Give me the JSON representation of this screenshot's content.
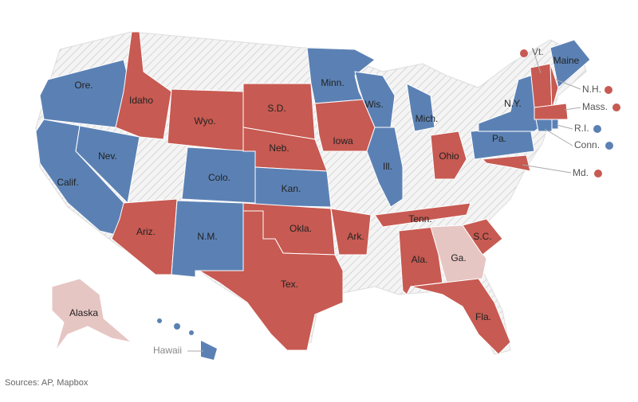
{
  "map": {
    "regions": [
      {
        "label": "Ore.",
        "color": "#5b81b4"
      },
      {
        "label": "Calif.",
        "color": "#5b81b4"
      },
      {
        "label": "Nev.",
        "color": "#5b81b4"
      },
      {
        "label": "Idaho",
        "color": "#c75a52"
      },
      {
        "label": "Wyo.",
        "color": "#c75a52"
      },
      {
        "label": "Ariz.",
        "color": "#c75a52"
      },
      {
        "label": "Colo.",
        "color": "#5b81b4"
      },
      {
        "label": "N.M.",
        "color": "#5b81b4"
      },
      {
        "label": "S.D.",
        "color": "#c75a52"
      },
      {
        "label": "Neb.",
        "color": "#c75a52"
      },
      {
        "label": "Kan.",
        "color": "#5b81b4"
      },
      {
        "label": "Okla.",
        "color": "#c75a52"
      },
      {
        "label": "Tex.",
        "color": "#c75a52"
      },
      {
        "label": "Minn.",
        "color": "#5b81b4"
      },
      {
        "label": "Iowa",
        "color": "#c75a52"
      },
      {
        "label": "Wis.",
        "color": "#5b81b4"
      },
      {
        "label": "Ill.",
        "color": "#5b81b4"
      },
      {
        "label": "Mich.",
        "color": "#5b81b4"
      },
      {
        "label": "Ohio",
        "color": "#c75a52"
      },
      {
        "label": "Ark.",
        "color": "#c75a52"
      },
      {
        "label": "Tenn.",
        "color": "#c75a52"
      },
      {
        "label": "Ala.",
        "color": "#c75a52"
      },
      {
        "label": "Ga.",
        "color": "#e6c6c3"
      },
      {
        "label": "S.C.",
        "color": "#c75a52"
      },
      {
        "label": "Fla.",
        "color": "#c75a52"
      },
      {
        "label": "Pa.",
        "color": "#5b81b4"
      },
      {
        "label": "N.Y.",
        "color": "#5b81b4"
      },
      {
        "label": "Maine",
        "color": "#5b81b4"
      },
      {
        "label": "Alaska",
        "color": "#e6c6c3"
      },
      {
        "label": "Hawaii",
        "color": "#5b81b4"
      }
    ],
    "callouts": [
      {
        "label": "Vt.",
        "color": "#c75a52"
      },
      {
        "label": "N.H.",
        "color": "#c75a52"
      },
      {
        "label": "Mass.",
        "color": "#c75a52"
      },
      {
        "label": "R.I.",
        "color": "#5b81b4"
      },
      {
        "label": "Conn.",
        "color": "#5b81b4"
      },
      {
        "label": "Md.",
        "color": "#c75a52"
      }
    ],
    "source": "Sources: AP, Mapbox"
  }
}
